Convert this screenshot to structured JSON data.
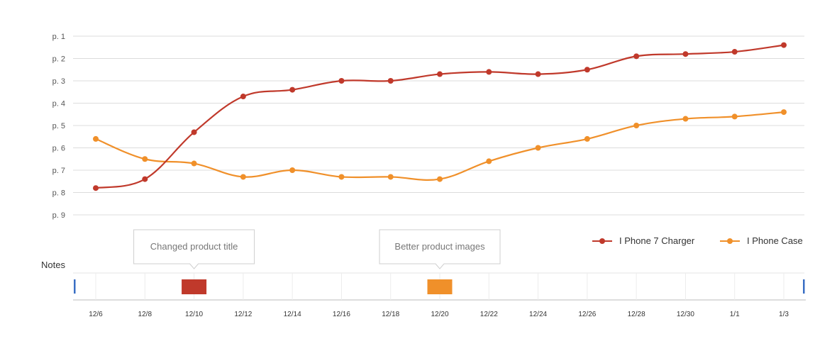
{
  "chart_data": {
    "type": "line",
    "x": [
      "12/6",
      "12/8",
      "12/10",
      "12/12",
      "12/14",
      "12/16",
      "12/18",
      "12/20",
      "12/22",
      "12/24",
      "12/26",
      "12/28",
      "12/30",
      "1/1",
      "1/3"
    ],
    "y_ticks": [
      "p. 1",
      "p. 2",
      "p. 3",
      "p. 4",
      "p. 5",
      "p. 6",
      "p. 7",
      "p. 8",
      "p. 9"
    ],
    "ylim": [
      1,
      9
    ],
    "y_inverted": true,
    "grid": true,
    "legend_position": "bottom-right",
    "series": [
      {
        "name": "I Phone 7 Charger",
        "color": "#c0392b",
        "values": [
          7.8,
          7.4,
          5.3,
          3.7,
          3.4,
          3.0,
          3.0,
          2.7,
          2.6,
          2.7,
          2.5,
          1.9,
          1.8,
          1.7,
          1.4
        ]
      },
      {
        "name": "I Phone Case",
        "color": "#f0902a",
        "values": [
          5.6,
          6.5,
          6.7,
          7.3,
          7.0,
          7.3,
          7.3,
          7.4,
          6.6,
          6.0,
          5.6,
          5.0,
          4.7,
          4.6,
          4.4
        ]
      }
    ],
    "notes": {
      "label": "Notes",
      "items": [
        {
          "text": "Changed product title",
          "date": "12/10",
          "color": "#c0392b"
        },
        {
          "text": "Better product images",
          "date": "12/20",
          "color": "#f0902a"
        }
      ]
    }
  }
}
